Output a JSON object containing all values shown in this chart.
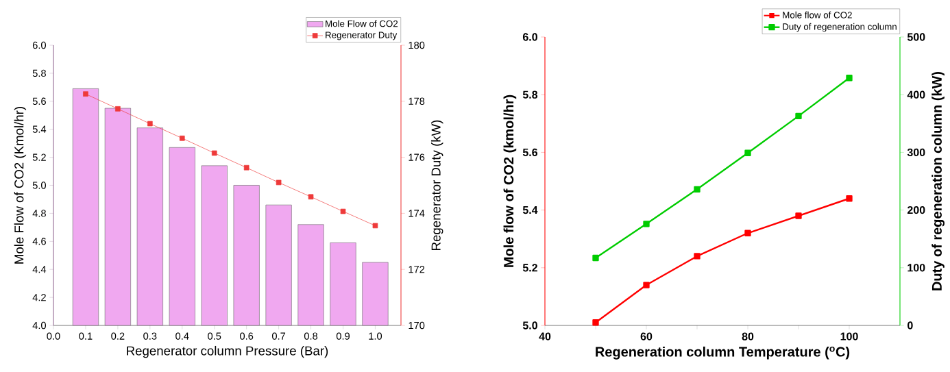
{
  "chart_data": [
    {
      "type": "bar",
      "x": [
        0.1,
        0.2,
        0.3,
        0.4,
        0.5,
        0.6,
        0.7,
        0.8,
        0.9,
        1.0
      ],
      "series": [
        {
          "name": "Mole Flow of CO2",
          "type": "bar",
          "color": "#f0a8f0",
          "values": [
            5.69,
            5.55,
            5.41,
            5.27,
            5.14,
            5.0,
            4.86,
            4.72,
            4.59,
            4.45
          ]
        },
        {
          "name": "Regenerator Duty",
          "type": "line",
          "axis": "y2",
          "color": "#ee3a3a",
          "values": [
            178.26,
            177.73,
            177.2,
            176.68,
            176.15,
            175.63,
            175.1,
            174.59,
            174.07,
            173.56
          ]
        }
      ],
      "xlabel": "Regenerator column Pressure (Bar)",
      "ylabel": "Mole Flow of CO2 (Kmol/hr)",
      "y2label": "Regenerator Duty (kW)",
      "xlim": [
        0,
        1.08
      ],
      "xticks": [
        {
          "value": 0,
          "label": "0.0"
        },
        0.1,
        0.2,
        0.3,
        0.4,
        0.5,
        0.6,
        0.7,
        0.8,
        0.9,
        {
          "value": 1,
          "label": "1.0"
        }
      ],
      "ylim": [
        4,
        6
      ],
      "yticks": [
        {
          "value": 4,
          "label": "4.0"
        },
        4.2,
        4.4,
        4.6,
        4.8,
        {
          "value": 5,
          "label": "5.0"
        },
        5.2,
        5.4,
        5.6,
        5.8,
        {
          "value": 6,
          "label": "6.0"
        }
      ],
      "y2lim": [
        170,
        180
      ],
      "y2ticks": [
        170,
        172,
        174,
        176,
        178,
        180
      ],
      "legend": "top right",
      "marker": "square"
    },
    {
      "type": "line",
      "x": [
        50,
        60,
        70,
        80,
        90,
        100
      ],
      "series": [
        {
          "name": "Mole flow of CO2",
          "color": "#ff0000",
          "values": [
            5.01,
            5.14,
            5.24,
            5.32,
            5.38,
            5.44
          ]
        },
        {
          "name": "Duty of  regeneration column",
          "axis": "y2",
          "color": "#00cc00",
          "values": [
            117,
            176,
            236,
            299,
            363,
            429
          ]
        }
      ],
      "xlabel": "Regeneration column Temperature ($^{o}$C)",
      "ylabel": "Mole flow of CO2 (kmol/hr)",
      "y2label": "Duty of  regeneration column (kW)",
      "xlim": [
        40,
        110
      ],
      "xticks": [
        40,
        {
          "value": 50,
          "label": null
        },
        60,
        {
          "value": 70,
          "label": null
        },
        80,
        {
          "value": 90,
          "label": null
        },
        100
      ],
      "ylim": [
        5,
        6
      ],
      "yticks": [
        {
          "value": 5,
          "label": "5.0"
        },
        5.2,
        5.4,
        5.6,
        5.8,
        {
          "value": 6,
          "label": "6.0"
        }
      ],
      "y2lim": [
        0,
        500
      ],
      "y2ticks": [
        0,
        100,
        200,
        300,
        400,
        500
      ],
      "legend": "top right",
      "marker": "square"
    }
  ]
}
